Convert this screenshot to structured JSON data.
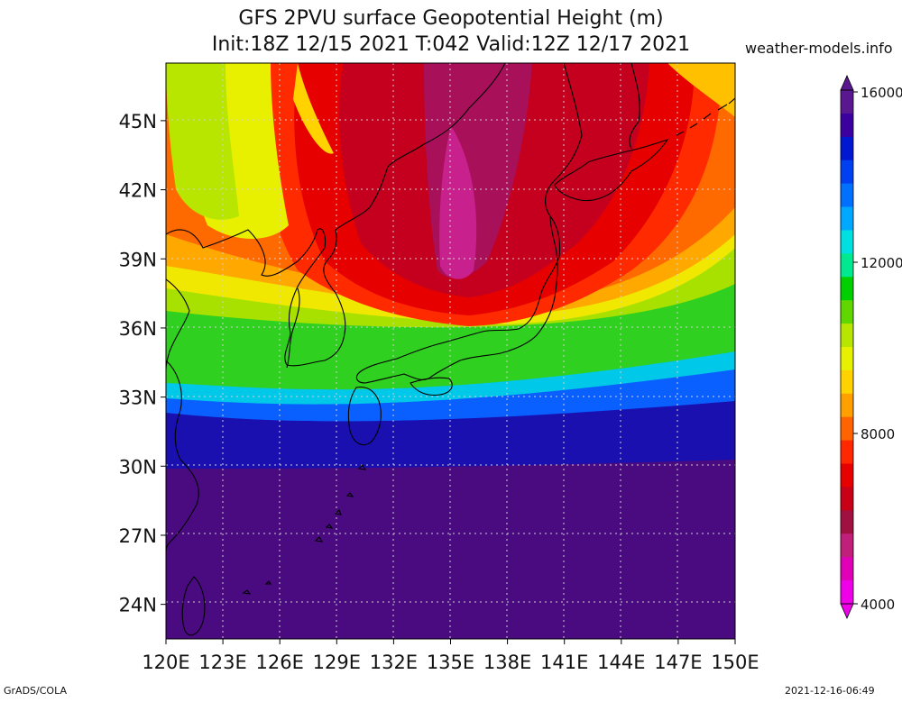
{
  "title": {
    "line1": "GFS 2PVU surface Geopotential Height (m)",
    "line2": "Init:18Z 12/15 2021 T:042 Valid:12Z 12/17 2021"
  },
  "brand": "weather-models.info",
  "footer": {
    "left": "GrADS/COLA",
    "right": "2021-12-16-06:49"
  },
  "map_axes": {
    "lat_labels": [
      "45N",
      "42N",
      "39N",
      "36N",
      "33N",
      "30N",
      "27N",
      "24N"
    ],
    "lat_values": [
      45,
      42,
      39,
      36,
      33,
      30,
      27,
      24
    ],
    "lon_labels": [
      "120E",
      "123E",
      "126E",
      "129E",
      "132E",
      "135E",
      "138E",
      "141E",
      "144E",
      "147E",
      "150E"
    ],
    "lon_values": [
      120,
      123,
      126,
      129,
      132,
      135,
      138,
      141,
      144,
      147,
      150
    ],
    "lat_range": [
      22.5,
      47.5
    ],
    "lon_range": [
      120,
      150
    ]
  },
  "colorbar": {
    "labels": [
      "16000",
      "12000",
      "8000",
      "4000"
    ],
    "colors": [
      "#5a1890",
      "#3c00a0",
      "#0018d0",
      "#0040f0",
      "#0070ff",
      "#00a8ff",
      "#00e0e0",
      "#00e890",
      "#00d000",
      "#60d800",
      "#b8e600",
      "#e6f000",
      "#ffd200",
      "#ffa000",
      "#ff6400",
      "#ff2800",
      "#e60000",
      "#c80018",
      "#a01040",
      "#c0207a",
      "#e000b8",
      "#f000e8"
    ]
  }
}
